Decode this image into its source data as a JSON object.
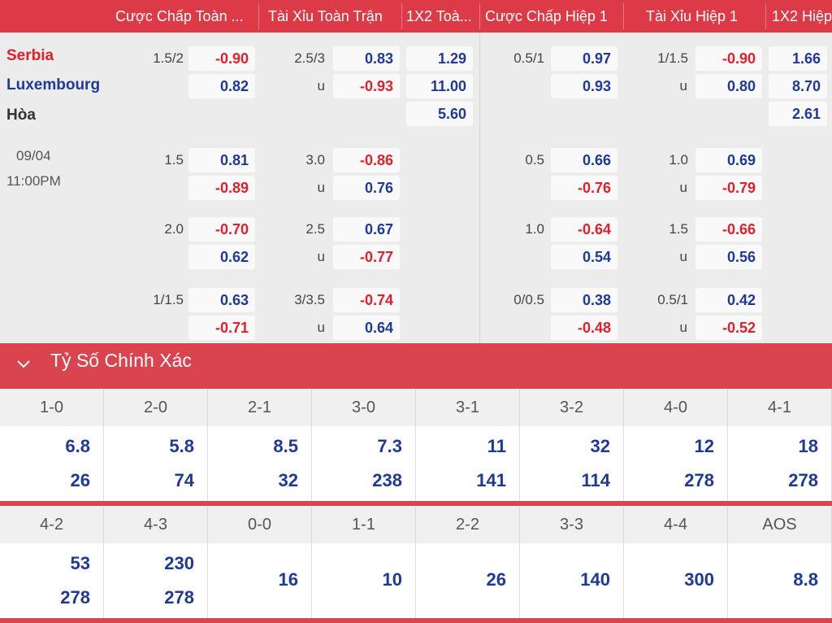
{
  "header": {
    "columns": [
      "Cược Chấp Toàn ...",
      "Tài Xỉu Toàn Trận",
      "1X2 Toà...",
      "Cược Chấp Hiệp 1",
      "Tài Xỉu Hiệp 1",
      "1X2 Hiệp"
    ]
  },
  "match": {
    "home": "Serbia",
    "away": "Luxembourg",
    "draw": "Hòa",
    "date": "09/04",
    "time": "11:00PM"
  },
  "colors": {
    "accent": "#dc3a46",
    "positive": "#1e3a96",
    "negative": "#e0202a",
    "home": "#e0202a",
    "away": "#1e3a96"
  },
  "odds": {
    "groups": [
      {
        "hcp_line": "1.5/2",
        "hcp_home": "-0.90",
        "hcp_away": "0.82",
        "ou_line": "2.5/3",
        "ou_over": "0.83",
        "ou_u": "u",
        "ou_under": "-0.93",
        "x12_home": "1.29",
        "x12_away": "11.00",
        "x12_draw": "5.60",
        "h1_hcp_line": "0.5/1",
        "h1_hcp_home": "0.97",
        "h1_hcp_away": "0.93",
        "h1_ou_line": "1/1.5",
        "h1_ou_over": "-0.90",
        "h1_ou_u": "u",
        "h1_ou_under": "0.80",
        "h1_x12_home": "1.66",
        "h1_x12_away": "8.70",
        "h1_x12_draw": "2.61"
      },
      {
        "hcp_line": "1.5",
        "hcp_home": "0.81",
        "hcp_away": "-0.89",
        "ou_line": "3.0",
        "ou_over": "-0.86",
        "ou_u": "u",
        "ou_under": "0.76",
        "h1_hcp_line": "0.5",
        "h1_hcp_home": "0.66",
        "h1_hcp_away": "-0.76",
        "h1_ou_line": "1.0",
        "h1_ou_over": "0.69",
        "h1_ou_u": "u",
        "h1_ou_under": "-0.79"
      },
      {
        "hcp_line": "2.0",
        "hcp_home": "-0.70",
        "hcp_away": "0.62",
        "ou_line": "2.5",
        "ou_over": "0.67",
        "ou_u": "u",
        "ou_under": "-0.77",
        "h1_hcp_line": "1.0",
        "h1_hcp_home": "-0.64",
        "h1_hcp_away": "0.54",
        "h1_ou_line": "1.5",
        "h1_ou_over": "-0.66",
        "h1_ou_u": "u",
        "h1_ou_under": "0.56"
      },
      {
        "hcp_line": "1/1.5",
        "hcp_home": "0.63",
        "hcp_away": "-0.71",
        "ou_line": "3/3.5",
        "ou_over": "-0.74",
        "ou_u": "u",
        "ou_under": "0.64",
        "h1_hcp_line": "0/0.5",
        "h1_hcp_home": "0.38",
        "h1_hcp_away": "-0.48",
        "h1_ou_line": "0.5/1",
        "h1_ou_over": "0.42",
        "h1_ou_u": "u",
        "h1_ou_under": "-0.52"
      }
    ]
  },
  "correct_score": {
    "title": "Tỷ Số Chính Xác",
    "table1": [
      {
        "score": "1-0",
        "top": "6.8",
        "bottom": "26"
      },
      {
        "score": "2-0",
        "top": "5.8",
        "bottom": "74"
      },
      {
        "score": "2-1",
        "top": "8.5",
        "bottom": "32"
      },
      {
        "score": "3-0",
        "top": "7.3",
        "bottom": "238"
      },
      {
        "score": "3-1",
        "top": "11",
        "bottom": "141"
      },
      {
        "score": "3-2",
        "top": "32",
        "bottom": "114"
      },
      {
        "score": "4-0",
        "top": "12",
        "bottom": "278"
      },
      {
        "score": "4-1",
        "top": "18",
        "bottom": "278"
      }
    ],
    "table2": [
      {
        "score": "4-2",
        "top": "53",
        "bottom": "278"
      },
      {
        "score": "4-3",
        "top": "230",
        "bottom": "278"
      },
      {
        "score": "0-0",
        "single": "16"
      },
      {
        "score": "1-1",
        "single": "10"
      },
      {
        "score": "2-2",
        "single": "26"
      },
      {
        "score": "3-3",
        "single": "140"
      },
      {
        "score": "4-4",
        "single": "300"
      },
      {
        "score": "AOS",
        "single": "8.8"
      }
    ]
  }
}
